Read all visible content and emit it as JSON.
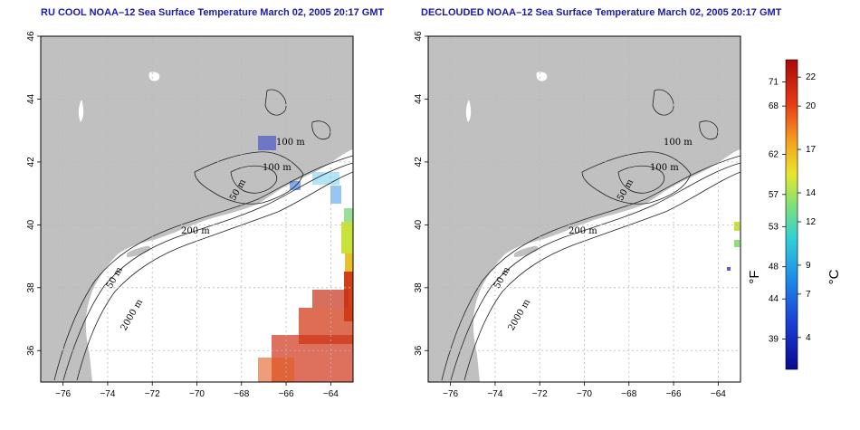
{
  "panels": [
    {
      "title": "RU COOL NOAA–12 Sea Surface Temperature March 02, 2005 20:17 GMT"
    },
    {
      "title": "DECLOUDED NOAA–12 Sea Surface Temperature March 02, 2005 20:17 GMT"
    }
  ],
  "axes": {
    "lon_ticks": [
      "−76",
      "−74",
      "−72",
      "−70",
      "−68",
      "−66",
      "−64"
    ],
    "lon_values": [
      -76,
      -74,
      -72,
      -70,
      -68,
      -66,
      -64
    ],
    "lat_ticks": [
      "36",
      "38",
      "40",
      "42",
      "44",
      "46"
    ],
    "lat_values": [
      36,
      38,
      40,
      42,
      44,
      46
    ],
    "lon_range": [
      -77,
      -63
    ],
    "lat_range": [
      35,
      46
    ],
    "grid": "dotted"
  },
  "contour_labels": [
    "100 m",
    "100 m",
    "50 m",
    "200 m",
    "50 m",
    "2000 m"
  ],
  "colorbar": {
    "fahrenheit_label": "°F",
    "celsius_label": "°C",
    "fahrenheit_ticks": [
      "71",
      "68",
      "62",
      "57",
      "53",
      "48",
      "44",
      "39"
    ],
    "celsius_ticks": [
      "22",
      "20",
      "17",
      "14",
      "12",
      "9",
      "7",
      "4"
    ],
    "celsius_values": [
      22,
      20,
      17,
      14,
      12,
      9,
      7,
      4
    ],
    "celsius_range": [
      1.8,
      23.2
    ],
    "colors": [
      "#0a0a8f",
      "#1a3fd6",
      "#1e8fe8",
      "#2fd0d8",
      "#7fe07a",
      "#e7e72c",
      "#f5a521",
      "#e63a14",
      "#a80a0a"
    ]
  },
  "colors": {
    "land": "#c0c0c0",
    "ocean": "#ffffff",
    "title": "#1a1aa6"
  }
}
